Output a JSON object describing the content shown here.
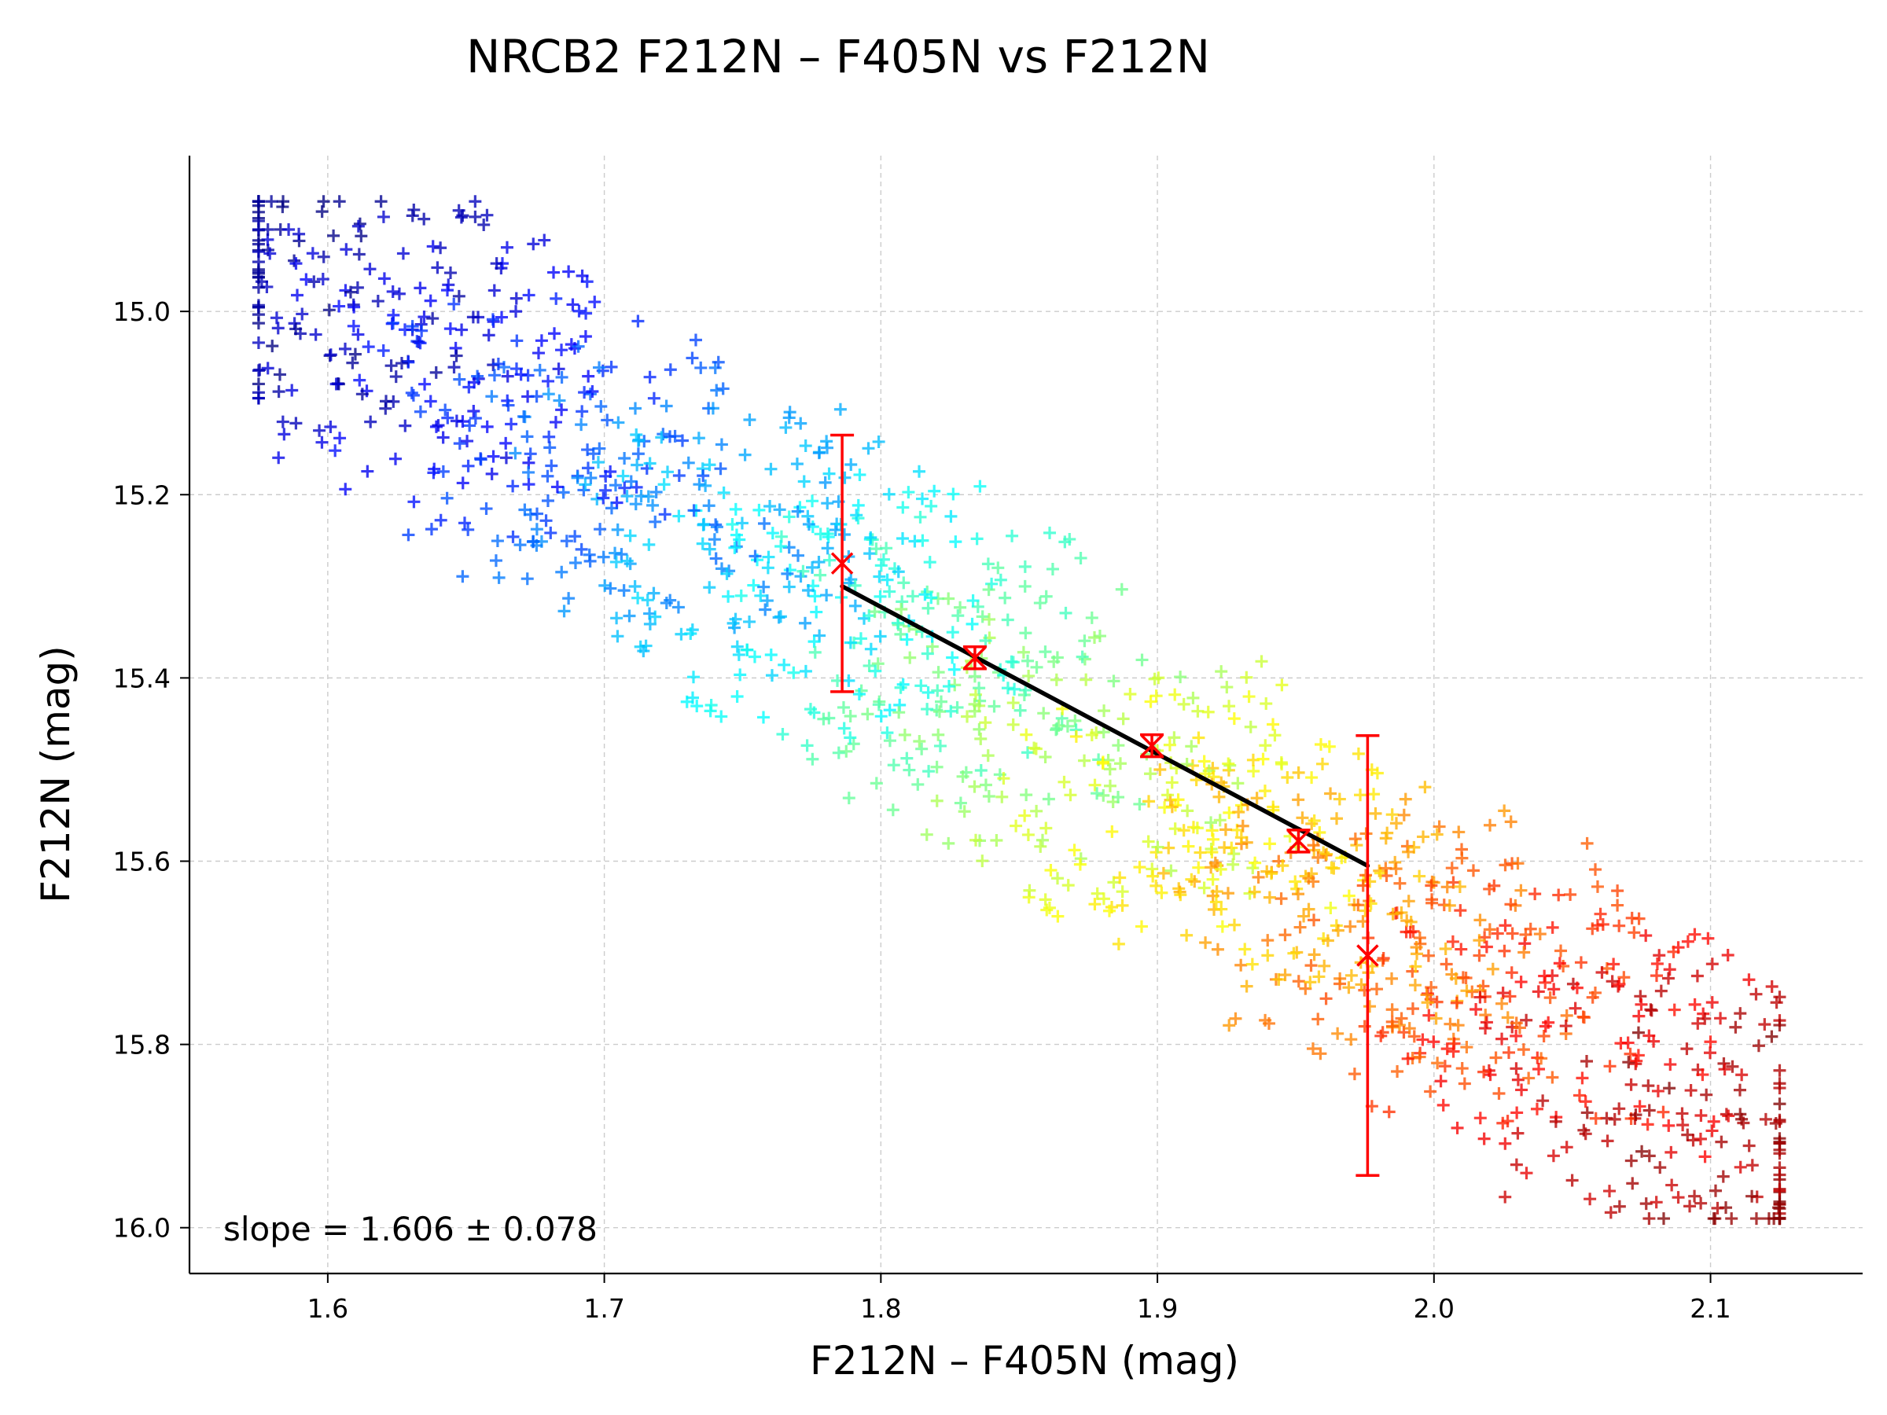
{
  "chart_data": {
    "type": "scatter",
    "title": "NRCB2 F212N – F405N vs F212N",
    "xlabel": "F212N – F405N (mag)",
    "ylabel": "F212N (mag)",
    "xlim": [
      1.55,
      2.155
    ],
    "ylim": [
      16.05,
      14.83
    ],
    "y_inverted": true,
    "x_ticks": [
      "1.6",
      "1.7",
      "1.8",
      "1.9",
      "2.0",
      "2.1"
    ],
    "y_ticks": [
      "15.0",
      "15.2",
      "15.4",
      "15.6",
      "15.8",
      "16.0"
    ],
    "grid": true,
    "colormap": "jet",
    "marker": "plus",
    "scatter_generation": {
      "n_points": 1500,
      "x_start": 1.58,
      "x_end": 2.12,
      "y_start": 14.95,
      "y_end": 15.92,
      "x_spread": 0.055,
      "y_spread": 0.13
    },
    "binned_points": [
      {
        "x": 1.786,
        "y": 15.275,
        "yerr": 0.14
      },
      {
        "x": 1.834,
        "y": 15.378,
        "yerr": 0.012
      },
      {
        "x": 1.898,
        "y": 15.474,
        "yerr": 0.012
      },
      {
        "x": 1.951,
        "y": 15.578,
        "yerr": 0.012
      },
      {
        "x": 1.976,
        "y": 15.703,
        "yerr": 0.24
      }
    ],
    "fit_line": {
      "x": [
        1.786,
        1.976
      ],
      "y": [
        15.3,
        15.605
      ],
      "color": "#000000"
    },
    "binned_color": "#ff0000",
    "slope_text": "slope = 1.606 ± 0.078"
  }
}
